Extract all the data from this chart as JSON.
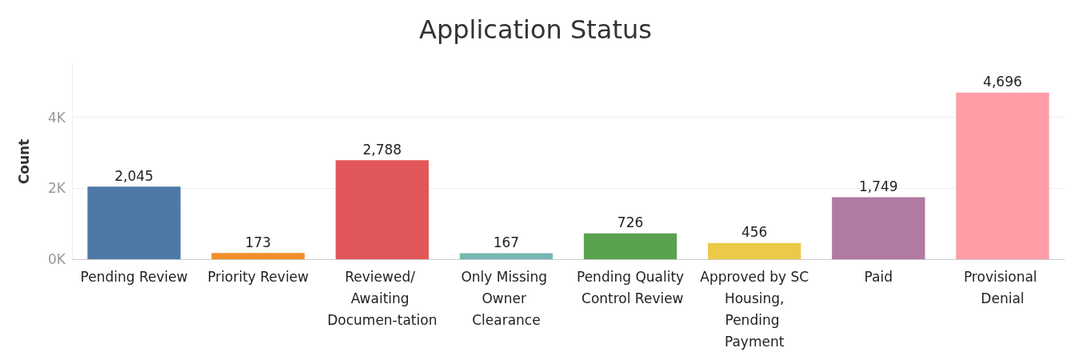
{
  "chart_data": {
    "type": "bar",
    "title": "Application Status",
    "ylabel": "Count",
    "categories": [
      "Pending Review",
      "Priority Review",
      "Reviewed/ Awaiting Documen-tation",
      "Only Missing Owner Clearance",
      "Pending Quality Control Review",
      "Approved by SC Housing, Pending Payment",
      "Paid",
      "Provisional Denial"
    ],
    "values": [
      2045,
      173,
      2788,
      167,
      726,
      456,
      1749,
      4696
    ],
    "colors": [
      "#4e79a7",
      "#f28e2b",
      "#e15759",
      "#76b7b2",
      "#59a14f",
      "#edc948",
      "#b07aa1",
      "#ff9da7"
    ],
    "value_labels": [
      "2,045",
      "173",
      "2,788",
      "167",
      "726",
      "456",
      "1,749",
      "4,696"
    ],
    "ylim": [
      0,
      5500
    ],
    "yticks": [
      {
        "value": 0,
        "label": "0K"
      },
      {
        "value": 2000,
        "label": "2K"
      },
      {
        "value": 4000,
        "label": "4K"
      }
    ],
    "grid": "y"
  }
}
